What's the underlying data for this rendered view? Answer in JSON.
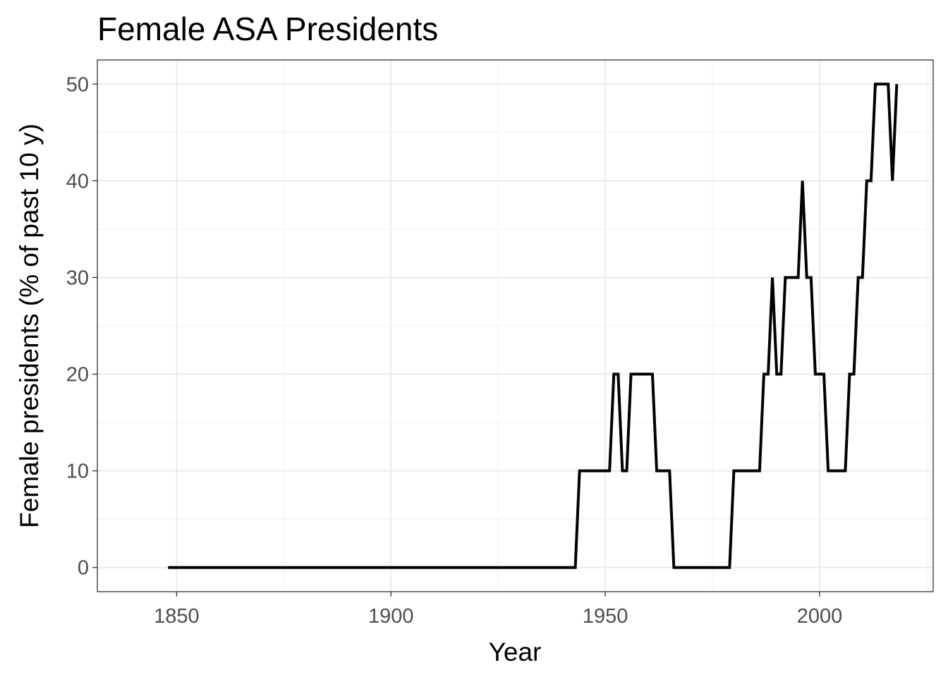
{
  "chart_data": {
    "type": "line",
    "title": "Female ASA Presidents",
    "xlabel": "Year",
    "ylabel": "Female presidents  (% of past 10 y)",
    "xlim": [
      1831.5,
      2026.5
    ],
    "ylim": [
      -2.5,
      52.5
    ],
    "x_ticks": [
      1850,
      1900,
      1950,
      2000
    ],
    "y_ticks": [
      0,
      10,
      20,
      30,
      40,
      50
    ],
    "x_minor": [
      1825,
      1875,
      1925,
      1975,
      2025
    ],
    "y_minor": [
      5,
      15,
      25,
      35,
      45
    ],
    "grid": true,
    "legend": "none",
    "series": [
      {
        "color": "#000000",
        "points": [
          [
            1848,
            0
          ],
          [
            1943,
            0
          ],
          [
            1944,
            10
          ],
          [
            1951,
            10
          ],
          [
            1952,
            20
          ],
          [
            1953,
            20
          ],
          [
            1954,
            10
          ],
          [
            1955,
            10
          ],
          [
            1956,
            20
          ],
          [
            1961,
            20
          ],
          [
            1962,
            10
          ],
          [
            1965,
            10
          ],
          [
            1966,
            0
          ],
          [
            1979,
            0
          ],
          [
            1980,
            10
          ],
          [
            1986,
            10
          ],
          [
            1987,
            20
          ],
          [
            1988,
            20
          ],
          [
            1989,
            30
          ],
          [
            1990,
            20
          ],
          [
            1991,
            20
          ],
          [
            1992,
            30
          ],
          [
            1995,
            30
          ],
          [
            1996,
            40
          ],
          [
            1997,
            30
          ],
          [
            1998,
            30
          ],
          [
            1999,
            20
          ],
          [
            2001,
            20
          ],
          [
            2002,
            10
          ],
          [
            2006,
            10
          ],
          [
            2007,
            20
          ],
          [
            2008,
            20
          ],
          [
            2009,
            30
          ],
          [
            2010,
            30
          ],
          [
            2011,
            40
          ],
          [
            2012,
            40
          ],
          [
            2013,
            50
          ],
          [
            2016,
            50
          ],
          [
            2017,
            40
          ],
          [
            2018,
            50
          ]
        ]
      }
    ]
  }
}
